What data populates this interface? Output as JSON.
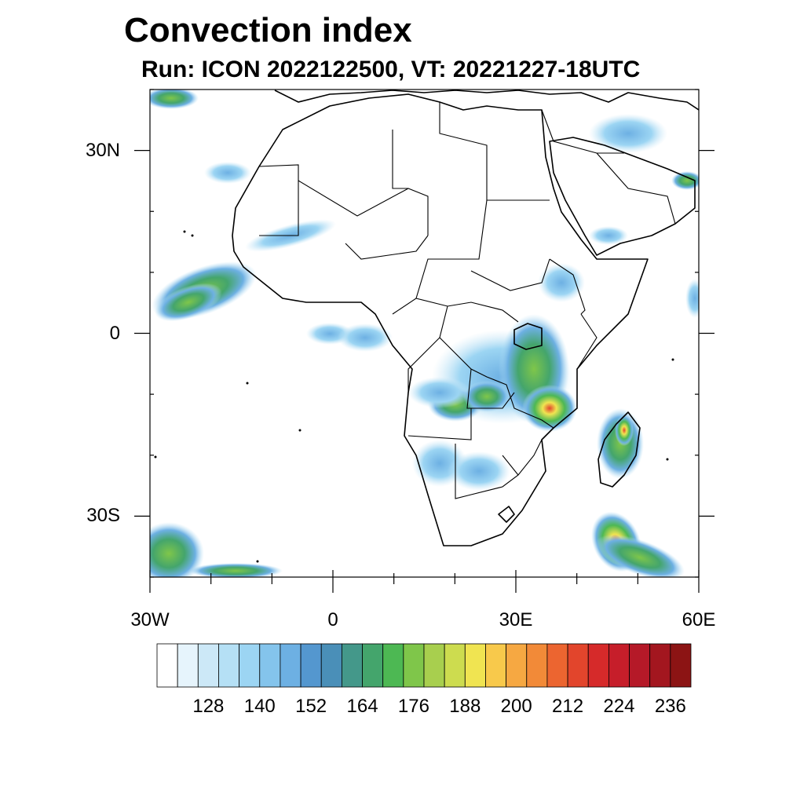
{
  "title": "Convection index",
  "subtitle": "Run: ICON 2022122500,  VT: 20221227-18UTC",
  "map": {
    "lon_range": [
      -30,
      60
    ],
    "lat_range": [
      -40,
      40
    ],
    "lat_labels": [
      {
        "lat": 30,
        "text": "30N"
      },
      {
        "lat": 0,
        "text": "0"
      },
      {
        "lat": -30,
        "text": "30S"
      }
    ],
    "lon_labels": [
      {
        "lon": -30,
        "text": "30W"
      },
      {
        "lon": 0,
        "text": "0"
      },
      {
        "lon": 30,
        "text": "30E"
      },
      {
        "lon": 60,
        "text": "60E"
      }
    ]
  },
  "colorbar": {
    "colors": [
      "#ffffff",
      "#e6f4fc",
      "#cce8f7",
      "#b5e0f5",
      "#9cd5f3",
      "#84c4ec",
      "#6db0e3",
      "#5497cf",
      "#4a8fb8",
      "#44988a",
      "#44a56c",
      "#4db853",
      "#7fc64a",
      "#a8cf4e",
      "#cddc4f",
      "#f0e451",
      "#f8c94b",
      "#f6a842",
      "#f28a38",
      "#ec6530",
      "#e2452c",
      "#d62a2a",
      "#c61e2a",
      "#b51928",
      "#a3161f",
      "#8c1414"
    ],
    "labels": [
      "128",
      "140",
      "152",
      "164",
      "176",
      "188",
      "200",
      "212",
      "224",
      "236"
    ]
  }
}
